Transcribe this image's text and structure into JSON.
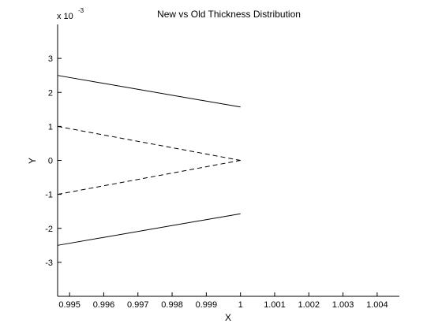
{
  "chart_data": {
    "type": "line",
    "title": "New vs Old Thickness Distribution",
    "xlabel": "X",
    "ylabel": "Y",
    "y_scale_label": "x 10",
    "y_scale_exponent": "-3",
    "xlim": [
      0.99465,
      1.00465
    ],
    "ylim": [
      -0.004,
      0.004
    ],
    "x_ticks": [
      0.995,
      0.996,
      0.997,
      0.998,
      0.999,
      1,
      1.001,
      1.002,
      1.003,
      1.004
    ],
    "x_tick_labels": [
      "0.995",
      "0.996",
      "0.997",
      "0.998",
      "0.999",
      "1",
      "1.001",
      "1.002",
      "1.003",
      "1.004"
    ],
    "y_ticks": [
      -0.003,
      -0.002,
      -0.001,
      0,
      0.001,
      0.002,
      0.003
    ],
    "y_tick_labels": [
      "-3",
      "-2",
      "-1",
      "0",
      "1",
      "2",
      "3"
    ],
    "grid": false,
    "series": [
      {
        "style": "solid",
        "x": [
          0.99465,
          1.0
        ],
        "y": [
          0.0025,
          0.00157
        ]
      },
      {
        "style": "solid",
        "x": [
          0.99465,
          1.0
        ],
        "y": [
          -0.0025,
          -0.00157
        ]
      },
      {
        "style": "dashed",
        "x": [
          0.99465,
          1.0
        ],
        "y": [
          0.001,
          0.0
        ]
      },
      {
        "style": "dashed",
        "x": [
          0.99465,
          1.0
        ],
        "y": [
          -0.001,
          0.0
        ]
      }
    ]
  }
}
